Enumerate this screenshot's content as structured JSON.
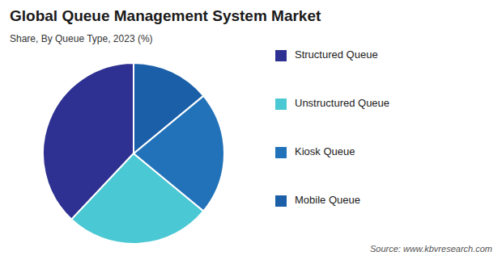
{
  "chart_data": {
    "type": "pie",
    "title": "Global Queue Management System Market",
    "subtitle": "Share, By Queue Type, 2023 (%)",
    "categories": [
      "Structured Queue",
      "Unstructured Queue",
      "Kiosk Queue",
      "Mobile Queue"
    ],
    "values": [
      38,
      26,
      22,
      14
    ],
    "colors": [
      "#2e3191",
      "#4ac8d4",
      "#2272b9",
      "#1a5fa8"
    ],
    "legend": "right",
    "annotations": [
      "Source: www.kbvresearch.com"
    ]
  }
}
